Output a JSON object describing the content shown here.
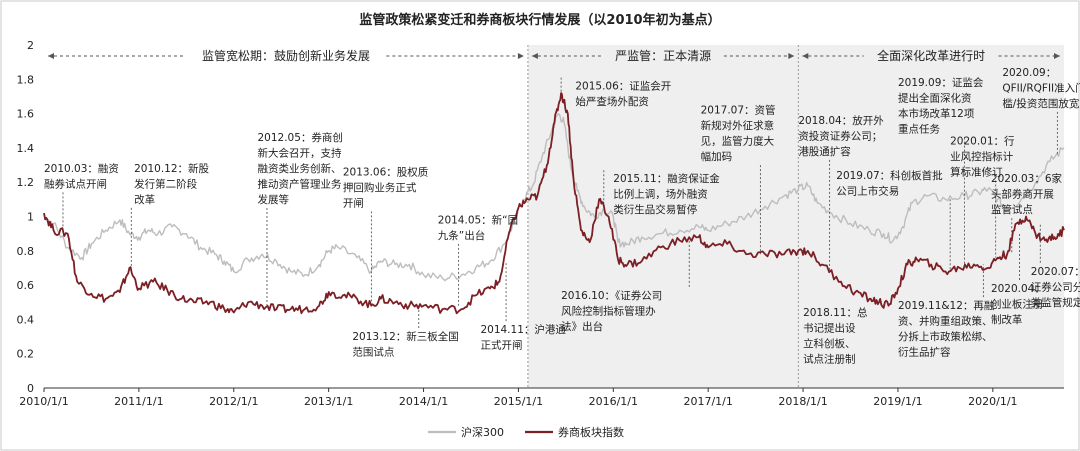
{
  "chart_data": {
    "type": "line",
    "title": "监管政策松紧变迁和券商板块行情发展（以2010年初为基点）",
    "xlabel": "",
    "ylabel": "",
    "x_ticks": [
      "2010/1/1",
      "2011/1/1",
      "2012/1/1",
      "2013/1/1",
      "2014/1/1",
      "2015/1/1",
      "2016/1/1",
      "2017/1/1",
      "2018/1/1",
      "2019/1/1",
      "2020/1/1"
    ],
    "x_range": [
      2010.0,
      2020.75
    ],
    "ylim": [
      0,
      2
    ],
    "y_ticks": [
      "0",
      "0.2",
      "0.4",
      "0.6",
      "0.8",
      "1",
      "1.2",
      "1.4",
      "1.6",
      "1.8",
      "2"
    ],
    "legend_position": "bottom-center",
    "series": [
      {
        "name": "沪深300",
        "color": "#bdbdbd",
        "x": [
          2010.0,
          2010.1,
          2010.25,
          2010.4,
          2010.5,
          2010.65,
          2010.8,
          2010.9,
          2011.0,
          2011.1,
          2011.2,
          2011.35,
          2011.5,
          2011.65,
          2011.8,
          2011.9,
          2012.0,
          2012.15,
          2012.3,
          2012.45,
          2012.6,
          2012.75,
          2012.9,
          2013.0,
          2013.1,
          2013.3,
          2013.45,
          2013.55,
          2013.7,
          2013.85,
          2014.0,
          2014.2,
          2014.4,
          2014.55,
          2014.7,
          2014.85,
          2014.95,
          2015.05,
          2015.15,
          2015.25,
          2015.35,
          2015.42,
          2015.48,
          2015.55,
          2015.62,
          2015.7,
          2015.8,
          2015.9,
          2016.0,
          2016.05,
          2016.15,
          2016.3,
          2016.5,
          2016.7,
          2016.9,
          2017.0,
          2017.2,
          2017.4,
          2017.6,
          2017.8,
          2017.95,
          2018.05,
          2018.15,
          2018.3,
          2018.5,
          2018.7,
          2018.85,
          2018.95,
          2019.05,
          2019.15,
          2019.3,
          2019.5,
          2019.7,
          2019.85,
          2019.95,
          2020.05,
          2020.15,
          2020.3,
          2020.45,
          2020.6,
          2020.75
        ],
        "values": [
          1.0,
          0.96,
          0.82,
          0.76,
          0.84,
          0.92,
          0.98,
          0.9,
          0.88,
          0.92,
          0.9,
          0.94,
          0.9,
          0.82,
          0.78,
          0.74,
          0.68,
          0.75,
          0.78,
          0.74,
          0.68,
          0.66,
          0.72,
          0.8,
          0.82,
          0.76,
          0.68,
          0.74,
          0.72,
          0.72,
          0.66,
          0.64,
          0.66,
          0.7,
          0.74,
          0.84,
          0.96,
          1.1,
          1.18,
          1.35,
          1.5,
          1.6,
          1.55,
          1.3,
          1.15,
          1.05,
          1.0,
          1.04,
          1.0,
          0.85,
          0.84,
          0.88,
          0.9,
          0.92,
          0.94,
          0.92,
          0.96,
          1.0,
          1.06,
          1.12,
          1.16,
          1.18,
          1.08,
          1.02,
          0.96,
          0.92,
          0.9,
          0.86,
          0.94,
          1.08,
          1.12,
          1.1,
          1.12,
          1.14,
          1.16,
          1.1,
          1.04,
          1.1,
          1.2,
          1.32,
          1.4
        ]
      },
      {
        "name": "券商板块指数",
        "color": "#7b1f25",
        "x": [
          2010.0,
          2010.1,
          2010.25,
          2010.35,
          2010.5,
          2010.65,
          2010.8,
          2010.9,
          2011.0,
          2011.15,
          2011.3,
          2011.45,
          2011.6,
          2011.75,
          2011.9,
          2012.0,
          2012.15,
          2012.3,
          2012.45,
          2012.6,
          2012.75,
          2012.9,
          2013.0,
          2013.15,
          2013.3,
          2013.45,
          2013.55,
          2013.7,
          2013.85,
          2014.0,
          2014.2,
          2014.4,
          2014.55,
          2014.7,
          2014.8,
          2014.9,
          2015.0,
          2015.1,
          2015.2,
          2015.3,
          2015.38,
          2015.45,
          2015.52,
          2015.58,
          2015.66,
          2015.75,
          2015.85,
          2015.95,
          2016.05,
          2016.15,
          2016.3,
          2016.5,
          2016.7,
          2016.9,
          2017.0,
          2017.2,
          2017.4,
          2017.6,
          2017.8,
          2017.95,
          2018.05,
          2018.2,
          2018.4,
          2018.55,
          2018.7,
          2018.8,
          2018.9,
          2019.0,
          2019.1,
          2019.2,
          2019.35,
          2019.5,
          2019.65,
          2019.8,
          2019.95,
          2020.05,
          2020.15,
          2020.25,
          2020.35,
          2020.45,
          2020.55,
          2020.65,
          2020.75
        ],
        "values": [
          1.02,
          0.92,
          0.9,
          0.62,
          0.55,
          0.52,
          0.56,
          0.7,
          0.58,
          0.62,
          0.57,
          0.52,
          0.5,
          0.5,
          0.46,
          0.44,
          0.5,
          0.48,
          0.46,
          0.46,
          0.46,
          0.48,
          0.56,
          0.54,
          0.52,
          0.48,
          0.52,
          0.5,
          0.48,
          0.48,
          0.46,
          0.46,
          0.54,
          0.58,
          0.62,
          0.9,
          1.05,
          1.1,
          1.12,
          1.3,
          1.55,
          1.72,
          1.6,
          1.22,
          0.92,
          0.85,
          1.1,
          1.0,
          0.75,
          0.72,
          0.74,
          0.82,
          0.86,
          0.88,
          0.82,
          0.84,
          0.78,
          0.78,
          0.78,
          0.8,
          0.8,
          0.72,
          0.62,
          0.56,
          0.52,
          0.5,
          0.48,
          0.58,
          0.72,
          0.75,
          0.72,
          0.68,
          0.7,
          0.72,
          0.7,
          0.76,
          0.78,
          0.96,
          1.0,
          0.9,
          0.86,
          0.88,
          0.92
        ]
      }
    ],
    "regions": [
      {
        "label": "监管宽松期：鼓励创新业务发展",
        "x_start": 2010.0,
        "x_end": 2015.1,
        "shaded": false
      },
      {
        "label": "严监管：正本清源",
        "x_start": 2015.1,
        "x_end": 2017.95,
        "shaded": true
      },
      {
        "label": "全面深化改革进行时",
        "x_start": 2017.95,
        "x_end": 2020.75,
        "shaded": true
      }
    ],
    "annotations": [
      {
        "lines": [
          "2010.03：融资",
          "融券试点开闸"
        ],
        "x": 2010.2,
        "y": 0.92,
        "ty": 1.26,
        "tx": 2010.0,
        "anchor": "start"
      },
      {
        "lines": [
          "2010.12：新股",
          "发行第二阶段",
          "改革"
        ],
        "x": 2010.92,
        "y": 0.7,
        "ty": 1.26,
        "tx": 2010.95,
        "anchor": "start"
      },
      {
        "lines": [
          "2012.05：券商创",
          "新大会召开，支持",
          "融资类业务创新、",
          "推动资产管理业务",
          "发展等"
        ],
        "x": 2012.35,
        "y": 0.48,
        "ty": 1.44,
        "tx": 2012.25,
        "anchor": "start"
      },
      {
        "lines": [
          "2013.06：股权质",
          "押回购业务正式",
          "开闸"
        ],
        "x": 2013.45,
        "y": 0.5,
        "ty": 1.24,
        "tx": 2013.15,
        "anchor": "start"
      },
      {
        "lines": [
          "2014.05：新“国",
          "九条”出台"
        ],
        "x": 2014.37,
        "y": 0.48,
        "ty": 0.96,
        "tx": 2014.15,
        "anchor": "start"
      },
      {
        "lines": [
          "2013.12：新三板全国",
          "范围试点"
        ],
        "x": 2013.95,
        "y": 0.47,
        "ty": 0.28,
        "tx": 2013.25,
        "anchor": "start"
      },
      {
        "lines": [
          "2014.11：沪港通",
          "正式开闸"
        ],
        "x": 2014.87,
        "y": 0.74,
        "ty": 0.32,
        "tx": 2014.6,
        "anchor": "start"
      },
      {
        "lines": [
          "2015.06：证监会开",
          "始严查场外配资"
        ],
        "x": 2015.45,
        "y": 1.72,
        "ty": 1.74,
        "tx": 2015.6,
        "anchor": "start"
      },
      {
        "lines": [
          "2015.11：融资保证金",
          "比例上调，场外融资",
          "类衍生品交易暂停"
        ],
        "x": 2015.9,
        "y": 1.05,
        "ty": 1.2,
        "tx": 2016.0,
        "anchor": "start"
      },
      {
        "lines": [
          "2016.10：《证券公司",
          "风险控制指标管理办",
          "法》出台"
        ],
        "x": 2016.8,
        "y": 0.86,
        "ty": 0.52,
        "tx": 2015.45,
        "anchor": "start"
      },
      {
        "lines": [
          "2017.07：资管",
          "新规对外征求意",
          "见，监管力度大",
          "幅加码"
        ],
        "x": 2017.55,
        "y": 0.78,
        "ty": 1.6,
        "tx": 2016.92,
        "anchor": "start"
      },
      {
        "lines": [
          "2018.04：放开外",
          "资投资证券公司；",
          "港股通扩容"
        ],
        "x": 2018.28,
        "y": 0.68,
        "ty": 1.54,
        "tx": 2017.95,
        "anchor": "start"
      },
      {
        "lines": [
          "2018.11：总",
          "书记提出设",
          "立科创板、",
          "试点注册制"
        ],
        "x": 2018.85,
        "y": 0.48,
        "ty": 0.42,
        "tx": 2018.0,
        "anchor": "start"
      },
      {
        "lines": [
          "2019.07：科创板首批",
          "公司上市交易"
        ],
        "x": 2019.55,
        "y": 0.68,
        "ty": 1.22,
        "tx": 2018.35,
        "anchor": "start"
      },
      {
        "lines": [
          "2019.09：证监会",
          "提出全面深化资",
          "本市场改革12项",
          "重点任务"
        ],
        "x": 2019.7,
        "y": 0.7,
        "ty": 1.76,
        "tx": 2019.0,
        "anchor": "start"
      },
      {
        "lines": [
          "2019.11&12：再融",
          "资、并购重组政策、",
          "分拆上市政策松绑、",
          "衍生品扩容"
        ],
        "x": 2019.9,
        "y": 0.72,
        "ty": 0.46,
        "tx": 2019.0,
        "anchor": "start"
      },
      {
        "lines": [
          "2020.01：行",
          "业风控指标计",
          "算标准修订"
        ],
        "x": 2020.03,
        "y": 0.76,
        "ty": 1.42,
        "tx": 2019.55,
        "anchor": "start"
      },
      {
        "lines": [
          "2020.03：6家",
          "头部券商开展",
          "监管试点"
        ],
        "x": 2020.2,
        "y": 0.78,
        "ty": 1.2,
        "tx": 2019.98,
        "anchor": "start"
      },
      {
        "lines": [
          "2020.09：",
          "QFII/RQFII准入门",
          "槛/投资范围放宽"
        ],
        "x": 2020.68,
        "y": 1.36,
        "ty": 1.82,
        "tx": 2020.1,
        "anchor": "start"
      },
      {
        "lines": [
          "2020.07：",
          "证券公司分",
          "类监管规定"
        ],
        "x": 2020.5,
        "y": 0.96,
        "ty": 0.66,
        "tx": 2020.4,
        "anchor": "start"
      },
      {
        "lines": [
          "2020.04：",
          "创业板注册",
          "制改革"
        ],
        "x": 2020.28,
        "y": 0.9,
        "ty": 0.56,
        "tx": 2019.98,
        "anchor": "start"
      }
    ]
  }
}
